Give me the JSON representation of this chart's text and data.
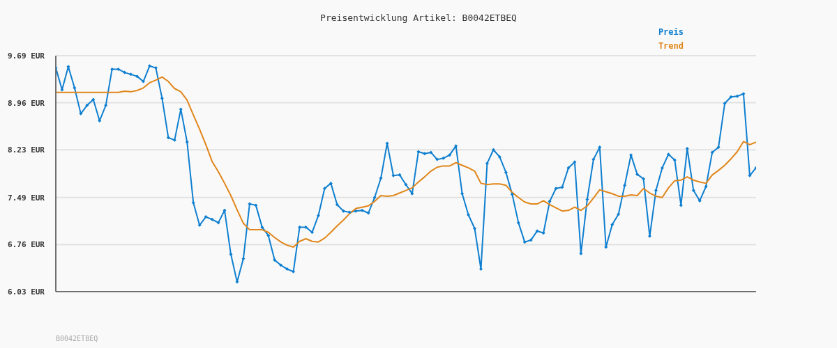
{
  "chart_data": {
    "type": "line",
    "title": "Preisentwicklung Artikel: B0042ETBEQ",
    "categories": [
      null,
      null,
      null,
      null,
      null,
      null,
      null,
      null,
      null,
      null,
      null,
      null,
      null,
      null,
      null,
      null,
      null,
      null,
      null,
      null,
      null,
      null,
      null,
      null,
      null,
      null,
      null,
      null,
      null,
      null,
      null,
      null,
      null,
      null,
      null,
      null,
      null,
      null,
      null,
      null,
      null,
      null,
      null,
      null,
      null,
      null,
      null,
      null,
      null,
      null,
      null,
      null,
      null,
      null,
      null,
      null,
      null,
      null,
      null,
      null,
      null,
      null,
      null,
      null,
      null,
      null,
      null,
      null,
      null,
      null,
      null,
      null,
      null,
      null,
      null,
      null,
      null,
      null,
      null,
      null,
      null,
      null,
      null,
      null,
      null,
      null,
      null,
      null,
      null,
      null,
      null,
      null,
      null,
      null,
      null,
      null,
      null,
      null,
      null,
      null,
      null,
      null,
      null,
      null,
      null,
      null,
      null,
      null,
      null,
      null,
      null,
      null,
      null
    ],
    "series": [
      {
        "name": "Preis",
        "color": "#0f7fd0",
        "marker": "diamond",
        "values": [
          9.5,
          9.16,
          9.52,
          9.19,
          8.79,
          8.92,
          9.01,
          8.68,
          8.92,
          9.48,
          9.48,
          9.43,
          9.4,
          9.37,
          9.29,
          9.53,
          9.5,
          9.03,
          8.42,
          8.38,
          8.86,
          8.35,
          7.41,
          7.06,
          7.19,
          7.15,
          7.1,
          7.29,
          6.61,
          6.18,
          6.54,
          7.39,
          7.37,
          7.03,
          6.9,
          6.52,
          6.44,
          6.38,
          6.34,
          7.03,
          7.03,
          6.95,
          7.21,
          7.63,
          7.71,
          7.38,
          7.28,
          7.26,
          7.28,
          7.29,
          7.25,
          7.49,
          7.79,
          8.33,
          7.83,
          7.84,
          7.69,
          7.55,
          8.2,
          8.17,
          8.19,
          8.08,
          8.1,
          8.15,
          8.29,
          7.55,
          7.22,
          7.01,
          6.38,
          8.02,
          8.23,
          8.12,
          7.88,
          7.54,
          7.1,
          6.8,
          6.83,
          6.97,
          6.94,
          7.43,
          7.63,
          7.65,
          7.95,
          8.04,
          6.62,
          7.46,
          8.08,
          8.27,
          6.72,
          7.07,
          7.23,
          7.68,
          8.15,
          7.85,
          7.78,
          6.89,
          7.6,
          7.95,
          8.16,
          8.07,
          7.37,
          8.25,
          7.6,
          7.44,
          7.66,
          8.19,
          8.27,
          8.95,
          9.05,
          9.06,
          9.1,
          7.83,
          7.95
        ]
      },
      {
        "name": "Trend",
        "color": "#e0861a",
        "marker": "none",
        "values": [
          9.12,
          9.12,
          9.12,
          9.12,
          9.12,
          9.12,
          9.12,
          9.12,
          9.12,
          9.12,
          9.12,
          9.14,
          9.13,
          9.15,
          9.19,
          9.27,
          9.31,
          9.36,
          9.29,
          9.18,
          9.13,
          9.0,
          8.77,
          8.55,
          8.31,
          8.05,
          7.89,
          7.71,
          7.52,
          7.3,
          7.09,
          6.99,
          6.99,
          6.99,
          6.95,
          6.87,
          6.8,
          6.75,
          6.72,
          6.81,
          6.85,
          6.81,
          6.8,
          6.86,
          6.95,
          7.05,
          7.14,
          7.24,
          7.32,
          7.34,
          7.36,
          7.43,
          7.52,
          7.51,
          7.52,
          7.56,
          7.6,
          7.64,
          7.73,
          7.81,
          7.9,
          7.96,
          7.98,
          7.98,
          8.03,
          7.99,
          7.95,
          7.9,
          7.71,
          7.69,
          7.7,
          7.7,
          7.68,
          7.57,
          7.49,
          7.42,
          7.39,
          7.39,
          7.44,
          7.38,
          7.33,
          7.28,
          7.29,
          7.34,
          7.29,
          7.36,
          7.48,
          7.61,
          7.58,
          7.55,
          7.51,
          7.51,
          7.53,
          7.52,
          7.63,
          7.56,
          7.51,
          7.49,
          7.64,
          7.75,
          7.76,
          7.81,
          7.76,
          7.73,
          7.71,
          7.84,
          7.91,
          7.99,
          8.09,
          8.2,
          8.36,
          8.31,
          8.35
        ]
      }
    ],
    "ylim": [
      6.03,
      9.69
    ],
    "yticks": [
      {
        "value": 6.03,
        "label": "6.03 EUR"
      },
      {
        "value": 6.76,
        "label": "6.76 EUR"
      },
      {
        "value": 7.49,
        "label": "7.49 EUR"
      },
      {
        "value": 8.23,
        "label": "8.23 EUR"
      },
      {
        "value": 8.96,
        "label": "8.96 EUR"
      },
      {
        "value": 9.69,
        "label": "9.69 EUR"
      }
    ],
    "grid": "y",
    "legend": "top right",
    "annotations": [
      "B0042ETBEQ"
    ]
  }
}
